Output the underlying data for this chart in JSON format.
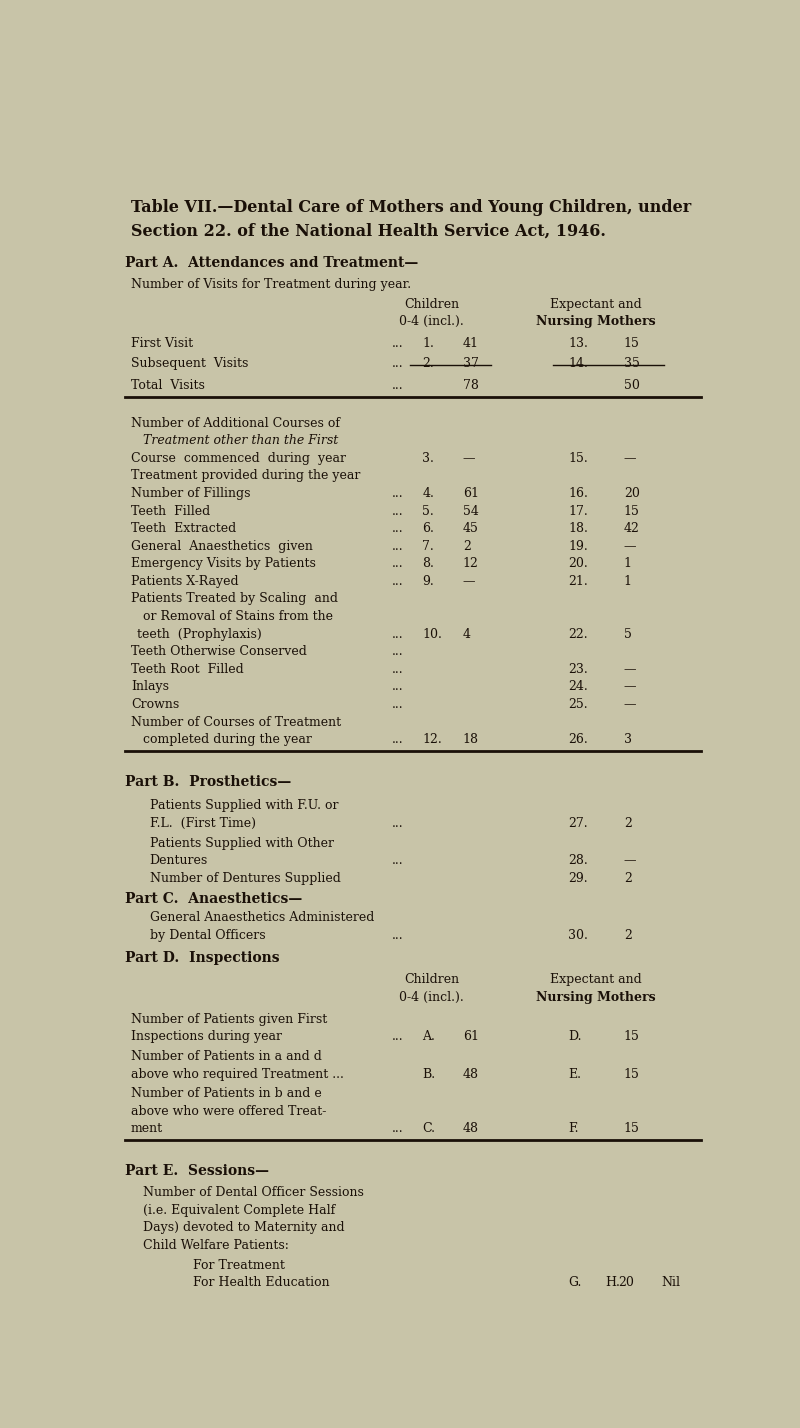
{
  "bg_color": "#c8c4a8",
  "text_color": "#1a1008",
  "title_line1": "Table VII.—Dental Care of Mothers and Young Children, under",
  "title_line2": "Section 22. of the National Health Service Act, 1946.",
  "part_a_header": "Part A.  Attendances and Treatment—",
  "part_b_header": "Part B.  Prosthetics—",
  "part_c_header": "Part C.  Anaesthetics—",
  "part_d_header": "Part D.  Inspections",
  "part_e_header": "Part E.  Sessions—",
  "figsize": [
    8.0,
    14.28
  ],
  "dpi": 100
}
